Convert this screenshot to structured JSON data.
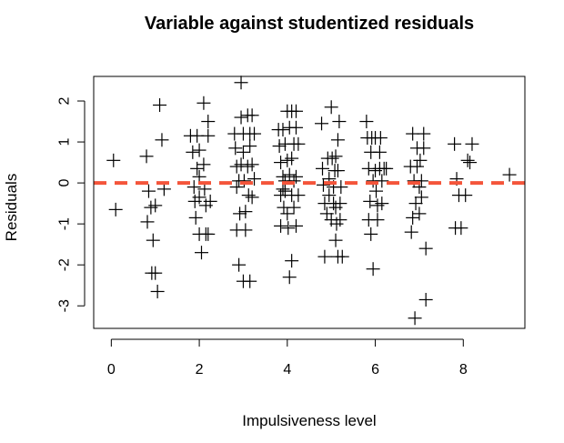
{
  "chart_data": {
    "type": "scatter",
    "title": "Variable against studentized residuals",
    "xlabel": "Impulsiveness level",
    "ylabel": "Residuals",
    "xlim": [
      -0.4,
      9.4
    ],
    "ylim": [
      -3.55,
      2.6
    ],
    "xticks": [
      0,
      2,
      4,
      6,
      8
    ],
    "yticks": [
      -3,
      -2,
      -1,
      0,
      1,
      2
    ],
    "marker": "plus",
    "grid": false,
    "reference_line": {
      "y": 0,
      "style": "dashed",
      "color": "#f4553b"
    },
    "points": [
      [
        0.05,
        0.55
      ],
      [
        0.1,
        -0.65
      ],
      [
        0.8,
        0.65
      ],
      [
        0.82,
        -0.95
      ],
      [
        0.85,
        -0.2
      ],
      [
        0.9,
        -0.6
      ],
      [
        0.92,
        -2.2
      ],
      [
        0.95,
        -1.4
      ],
      [
        1.0,
        -0.55
      ],
      [
        1.0,
        -2.2
      ],
      [
        1.05,
        -2.65
      ],
      [
        1.1,
        1.9
      ],
      [
        1.15,
        1.05
      ],
      [
        1.2,
        -0.15
      ],
      [
        1.8,
        1.15
      ],
      [
        1.85,
        0.75
      ],
      [
        1.88,
        -0.1
      ],
      [
        1.9,
        -0.45
      ],
      [
        1.92,
        -0.85
      ],
      [
        1.95,
        1.15
      ],
      [
        1.95,
        0.35
      ],
      [
        2.0,
        0.8
      ],
      [
        2.0,
        0.15
      ],
      [
        2.0,
        -0.35
      ],
      [
        2.0,
        -1.25
      ],
      [
        2.05,
        -1.7
      ],
      [
        2.1,
        1.95
      ],
      [
        2.1,
        0.45
      ],
      [
        2.12,
        -0.15
      ],
      [
        2.15,
        -0.55
      ],
      [
        2.15,
        -1.25
      ],
      [
        2.2,
        1.5
      ],
      [
        2.2,
        1.15
      ],
      [
        2.2,
        -1.25
      ],
      [
        2.25,
        -0.45
      ],
      [
        2.8,
        1.2
      ],
      [
        2.82,
        0.85
      ],
      [
        2.85,
        0.4
      ],
      [
        2.85,
        -0.1
      ],
      [
        2.85,
        -1.15
      ],
      [
        2.9,
        -2.0
      ],
      [
        2.9,
        0.05
      ],
      [
        2.92,
        -0.75
      ],
      [
        2.95,
        2.45
      ],
      [
        2.95,
        1.6
      ],
      [
        2.95,
        0.45
      ],
      [
        3.0,
        -2.4
      ],
      [
        3.0,
        1.2
      ],
      [
        3.0,
        0.75
      ],
      [
        3.02,
        0.05
      ],
      [
        3.05,
        -0.7
      ],
      [
        3.05,
        -1.15
      ],
      [
        3.1,
        1.65
      ],
      [
        3.1,
        0.4
      ],
      [
        3.12,
        -0.3
      ],
      [
        3.15,
        1.2
      ],
      [
        3.15,
        0.9
      ],
      [
        3.15,
        -2.4
      ],
      [
        3.2,
        1.65
      ],
      [
        3.2,
        0.45
      ],
      [
        3.2,
        -0.35
      ],
      [
        3.25,
        1.2
      ],
      [
        3.25,
        0.1
      ],
      [
        3.8,
        1.3
      ],
      [
        3.82,
        0.9
      ],
      [
        3.85,
        0.5
      ],
      [
        3.85,
        -0.3
      ],
      [
        3.85,
        -1.05
      ],
      [
        3.9,
        1.3
      ],
      [
        3.9,
        0.15
      ],
      [
        3.92,
        -0.6
      ],
      [
        3.95,
        0.95
      ],
      [
        3.95,
        -0.2
      ],
      [
        4.0,
        1.75
      ],
      [
        4.0,
        0.55
      ],
      [
        4.0,
        -0.75
      ],
      [
        4.02,
        -1.1
      ],
      [
        4.05,
        1.35
      ],
      [
        4.05,
        0.2
      ],
      [
        4.05,
        -2.3
      ],
      [
        4.1,
        1.75
      ],
      [
        4.1,
        0.6
      ],
      [
        4.1,
        -0.3
      ],
      [
        4.1,
        -1.9
      ],
      [
        4.15,
        0.95
      ],
      [
        4.15,
        0.05
      ],
      [
        4.15,
        -0.6
      ],
      [
        4.2,
        1.75
      ],
      [
        4.2,
        1.35
      ],
      [
        4.2,
        0.15
      ],
      [
        4.2,
        -1.05
      ],
      [
        4.25,
        0.95
      ],
      [
        4.25,
        -0.3
      ],
      [
        3.9,
        -0.15
      ],
      [
        3.95,
        0.05
      ],
      [
        4.78,
        1.45
      ],
      [
        4.8,
        0.35
      ],
      [
        4.82,
        -0.05
      ],
      [
        4.85,
        -0.5
      ],
      [
        4.85,
        -1.8
      ],
      [
        4.9,
        -0.75
      ],
      [
        4.92,
        0.6
      ],
      [
        4.95,
        0.1
      ],
      [
        4.95,
        -0.3
      ],
      [
        5.0,
        -0.9
      ],
      [
        5.0,
        1.85
      ],
      [
        5.02,
        0.6
      ],
      [
        5.05,
        -0.1
      ],
      [
        5.05,
        -0.5
      ],
      [
        5.08,
        0.3
      ],
      [
        5.1,
        0.65
      ],
      [
        5.1,
        -0.6
      ],
      [
        5.1,
        -1.4
      ],
      [
        5.12,
        -1.0
      ],
      [
        5.15,
        1.05
      ],
      [
        5.15,
        0.3
      ],
      [
        5.15,
        -1.8
      ],
      [
        5.18,
        1.5
      ],
      [
        5.2,
        -0.9
      ],
      [
        5.2,
        -0.5
      ],
      [
        5.22,
        -0.1
      ],
      [
        5.25,
        -1.8
      ],
      [
        5.8,
        1.5
      ],
      [
        5.82,
        1.1
      ],
      [
        5.85,
        0.35
      ],
      [
        5.85,
        -0.9
      ],
      [
        5.88,
        -0.45
      ],
      [
        5.9,
        0.75
      ],
      [
        5.9,
        -1.25
      ],
      [
        5.92,
        1.1
      ],
      [
        5.95,
        0.05
      ],
      [
        5.95,
        -2.1
      ],
      [
        6.0,
        1.1
      ],
      [
        6.0,
        0.3
      ],
      [
        6.02,
        -0.2
      ],
      [
        6.05,
        -0.55
      ],
      [
        6.05,
        -0.9
      ],
      [
        6.1,
        0.35
      ],
      [
        6.1,
        0.75
      ],
      [
        6.12,
        1.1
      ],
      [
        6.15,
        -0.5
      ],
      [
        6.2,
        0.35
      ],
      [
        6.25,
        0.35
      ],
      [
        6.15,
        0.05
      ],
      [
        6.8,
        0.4
      ],
      [
        6.82,
        -1.2
      ],
      [
        6.85,
        -0.85
      ],
      [
        6.85,
        1.2
      ],
      [
        6.88,
        0.05
      ],
      [
        6.9,
        -3.3
      ],
      [
        6.92,
        -0.5
      ],
      [
        6.95,
        0.4
      ],
      [
        6.95,
        0.85
      ],
      [
        7.0,
        -0.1
      ],
      [
        7.0,
        -0.75
      ],
      [
        7.02,
        0.55
      ],
      [
        7.05,
        0.05
      ],
      [
        7.05,
        -0.35
      ],
      [
        7.1,
        1.2
      ],
      [
        7.1,
        0.85
      ],
      [
        7.15,
        -1.6
      ],
      [
        7.15,
        -2.85
      ],
      [
        7.8,
        0.95
      ],
      [
        7.82,
        -1.1
      ],
      [
        7.85,
        0.1
      ],
      [
        7.9,
        -0.3
      ],
      [
        7.95,
        -1.1
      ],
      [
        8.05,
        -0.3
      ],
      [
        8.1,
        0.55
      ],
      [
        8.15,
        0.5
      ],
      [
        8.2,
        0.95
      ],
      [
        9.05,
        0.2
      ]
    ]
  }
}
